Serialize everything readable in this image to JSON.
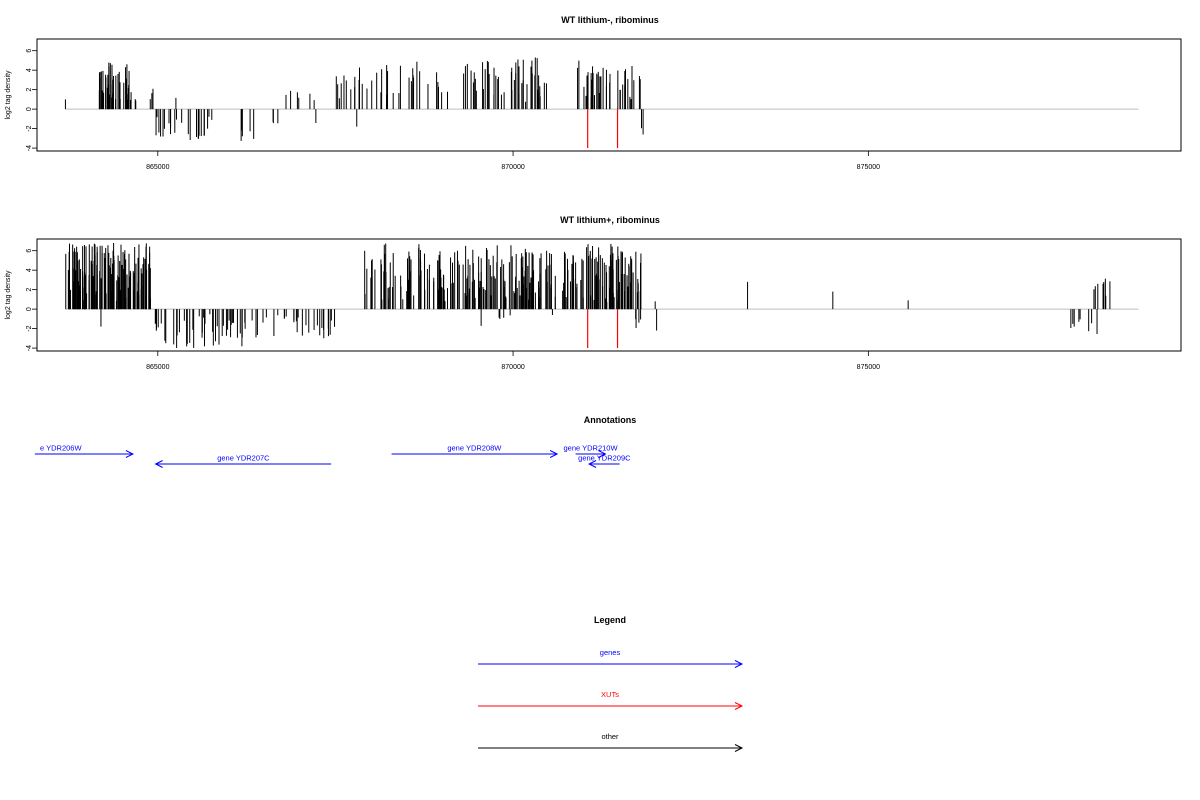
{
  "chart_data": [
    {
      "type": "bar",
      "title": "WT lithium-, ribominus",
      "xlabel": "",
      "ylabel": "log2 tag density",
      "xlim": [
        863300,
        879400
      ],
      "ylim": [
        -4,
        6
      ],
      "xticks": [
        865000,
        870000,
        875000
      ],
      "yticks": [
        6,
        4,
        2,
        0,
        -2,
        -4
      ],
      "baseline": 0,
      "grid": false,
      "pos_segments": [
        {
          "x0": 864160,
          "x1": 864700,
          "n": 45,
          "max": 4.8,
          "seed": 11
        },
        {
          "x0": 864890,
          "x1": 865000,
          "n": 3,
          "max": 2.8,
          "seed": 12
        },
        {
          "x0": 865250,
          "x1": 865270,
          "n": 1,
          "max": 1.6,
          "seed": 13
        },
        {
          "x0": 866700,
          "x1": 867400,
          "n": 6,
          "max": 2.6,
          "seed": 14
        },
        {
          "x0": 867500,
          "x1": 869900,
          "n": 60,
          "max": 5.0,
          "seed": 15
        },
        {
          "x0": 869950,
          "x1": 870500,
          "n": 28,
          "max": 5.4,
          "seed": 16
        },
        {
          "x0": 870900,
          "x1": 871800,
          "n": 40,
          "max": 5.0,
          "seed": 17
        }
      ],
      "neg_segments": [
        {
          "x0": 864000,
          "x1": 864700,
          "n": 0,
          "min": -1.8,
          "seed": 21
        },
        {
          "x0": 864950,
          "x1": 865800,
          "n": 24,
          "min": -3.2,
          "seed": 22
        },
        {
          "x0": 866100,
          "x1": 866450,
          "n": 6,
          "min": -3.5,
          "seed": 23
        },
        {
          "x0": 866500,
          "x1": 867000,
          "n": 3,
          "min": -2.0,
          "seed": 24
        },
        {
          "x0": 867200,
          "x1": 867300,
          "n": 1,
          "min": -2.0,
          "seed": 25
        },
        {
          "x0": 871800,
          "x1": 871830,
          "n": 1,
          "min": -2.6,
          "seed": 26
        }
      ],
      "extra_bars": [
        {
          "x": 863700,
          "y": 1.0
        },
        {
          "x": 867800,
          "y": -1.8
        },
        {
          "x": 871830,
          "y": -2.6
        }
      ],
      "xut_marks": [
        {
          "x": 871050,
          "y": -4
        },
        {
          "x": 871470,
          "y": -4
        }
      ]
    },
    {
      "type": "bar",
      "title": "WT lithium+, ribominus",
      "xlabel": "",
      "ylabel": "log2 tag density",
      "xlim": [
        863300,
        879400
      ],
      "ylim": [
        -4,
        6
      ],
      "xticks": [
        865000,
        870000,
        875000
      ],
      "yticks": [
        6,
        4,
        2,
        0,
        -2,
        -4
      ],
      "baseline": 0,
      "grid": false,
      "pos_segments": [
        {
          "x0": 863700,
          "x1": 864900,
          "n": 150,
          "max": 6.8,
          "seed": 31
        },
        {
          "x0": 867900,
          "x1": 870000,
          "n": 120,
          "max": 6.8,
          "seed": 32
        },
        {
          "x0": 870000,
          "x1": 870950,
          "n": 70,
          "max": 6.2,
          "seed": 33
        },
        {
          "x0": 870950,
          "x1": 871800,
          "n": 80,
          "max": 6.7,
          "seed": 34
        },
        {
          "x0": 878100,
          "x1": 878400,
          "n": 8,
          "max": 3.2,
          "seed": 35
        }
      ],
      "neg_segments": [
        {
          "x0": 864950,
          "x1": 866200,
          "n": 45,
          "min": -4.0,
          "seed": 41
        },
        {
          "x0": 866200,
          "x1": 867500,
          "n": 30,
          "min": -3.0,
          "seed": 42
        },
        {
          "x0": 869500,
          "x1": 870700,
          "n": 6,
          "min": -2.0,
          "seed": 43
        },
        {
          "x0": 871700,
          "x1": 871800,
          "n": 4,
          "min": -2.0,
          "seed": 44
        },
        {
          "x0": 877700,
          "x1": 878400,
          "n": 8,
          "min": -2.8,
          "seed": 45
        }
      ],
      "extra_bars": [
        {
          "x": 864200,
          "y": -1.8
        },
        {
          "x": 872000,
          "y": 0.8
        },
        {
          "x": 872020,
          "y": -2.2
        },
        {
          "x": 873300,
          "y": 2.8
        },
        {
          "x": 874500,
          "y": 1.8
        },
        {
          "x": 875560,
          "y": 0.9
        },
        {
          "x": 867400,
          "y": -2.0
        }
      ],
      "xut_marks": [
        {
          "x": 871050,
          "y": -4
        },
        {
          "x": 871470,
          "y": -4
        }
      ]
    }
  ],
  "annotations": {
    "title": "Annotations",
    "xlim": [
      863300,
      879400
    ],
    "genes": [
      {
        "label": "YDR206W",
        "prefix": "e ",
        "x0": 863270,
        "x1": 864650,
        "dir": "right",
        "row": 0
      },
      {
        "label": "gene YDR207C",
        "prefix": "",
        "x0": 864970,
        "x1": 867440,
        "dir": "left",
        "row": 1
      },
      {
        "label": "gene YDR208W",
        "prefix": "",
        "x0": 868290,
        "x1": 870620,
        "dir": "right",
        "row": 0
      },
      {
        "label": "gene YDR210W",
        "prefix": "",
        "x0": 870880,
        "x1": 871300,
        "dir": "right",
        "row": 0
      },
      {
        "label": "gene YDR209C",
        "prefix": "",
        "x0": 871070,
        "x1": 871500,
        "dir": "left",
        "row": 1
      }
    ]
  },
  "legend": {
    "title": "Legend",
    "items": [
      {
        "label": "genes",
        "color": "#0000ff"
      },
      {
        "label": "XUTs",
        "color": "#ff0000"
      },
      {
        "label": "other",
        "color": "#000000"
      }
    ]
  },
  "colors": {
    "bar": "#000000",
    "xut": "#ff0000",
    "gene": "#0000ff",
    "baseline": "#bebebe",
    "frame": "#000000"
  }
}
